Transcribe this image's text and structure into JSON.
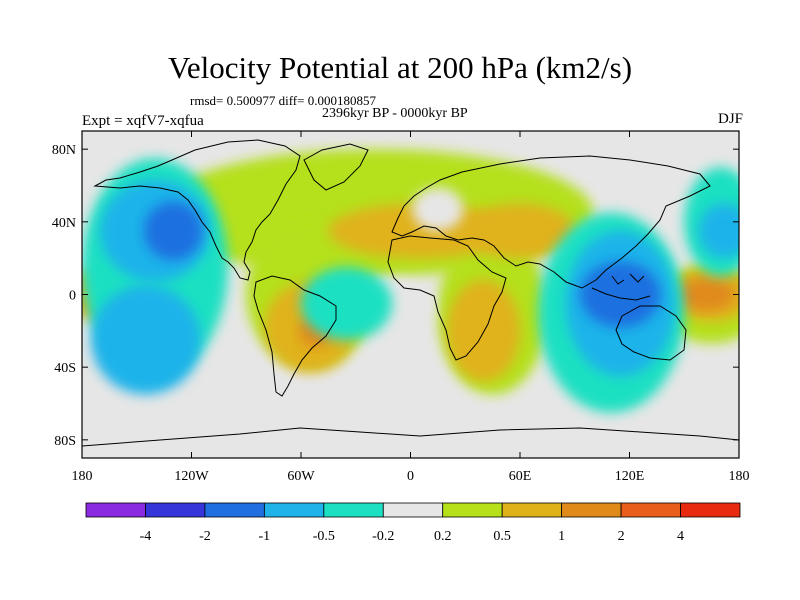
{
  "title": "Velocity Potential at 200 hPa (km2/s)",
  "stats_text": "rmsd= 0.500977 diff= 0.000180857",
  "period_text": "2396kyr BP - 0000kyr BP",
  "experiment_text": "Expt = xqfV7-xqfua",
  "season": "DJF",
  "map": {
    "projection": "cylindrical equidistant",
    "lon_range": [
      -180,
      180
    ],
    "lat_range": [
      -90,
      90
    ],
    "lon_ticks": [
      {
        "value": -180,
        "label": "180"
      },
      {
        "value": -120,
        "label": "120W"
      },
      {
        "value": -60,
        "label": "60W"
      },
      {
        "value": 0,
        "label": "0"
      },
      {
        "value": 60,
        "label": "60E"
      },
      {
        "value": 120,
        "label": "120E"
      },
      {
        "value": 180,
        "label": "180"
      }
    ],
    "lat_ticks": [
      {
        "value": 80,
        "label": "80N"
      },
      {
        "value": 40,
        "label": "40N"
      },
      {
        "value": 0,
        "label": "0"
      },
      {
        "value": -40,
        "label": "40S"
      },
      {
        "value": -80,
        "label": "80S"
      }
    ]
  },
  "colorbar": {
    "colors": [
      "#8a2be2",
      "#3535d9",
      "#1f6fe0",
      "#1fb3ea",
      "#1de0c2",
      "#e6e6e6",
      "#b5e01a",
      "#e0b21a",
      "#e08a1a",
      "#e85e1a",
      "#e82a10"
    ],
    "labels": [
      "-4",
      "-2",
      "-1",
      "-0.5",
      "-0.2",
      "0.2",
      "0.5",
      "1",
      "2",
      "4"
    ]
  },
  "fields": [
    {
      "level": "0.5",
      "color": "#b5e01a",
      "lon": -20,
      "lat": 45,
      "rlon": 120,
      "rlat": 35
    },
    {
      "level": "0.5",
      "color": "#b5e01a",
      "lon": -55,
      "lat": 0,
      "rlon": 35,
      "rlat": 40
    },
    {
      "level": "0.5",
      "color": "#b5e01a",
      "lon": 45,
      "lat": -10,
      "rlon": 30,
      "rlat": 45
    },
    {
      "level": "0.5",
      "color": "#b5e01a",
      "lon": 165,
      "lat": -5,
      "rlon": 28,
      "rlat": 22
    },
    {
      "level": "1",
      "color": "#e0b21a",
      "lon": 5,
      "lat": 35,
      "rlon": 50,
      "rlat": 15
    },
    {
      "level": "1",
      "color": "#e0b21a",
      "lon": 60,
      "lat": 35,
      "rlon": 30,
      "rlat": 15
    },
    {
      "level": "1",
      "color": "#e0b21a",
      "lon": -55,
      "lat": -18,
      "rlon": 25,
      "rlat": 25
    },
    {
      "level": "1",
      "color": "#e0b21a",
      "lon": 40,
      "lat": -20,
      "rlon": 20,
      "rlat": 28
    },
    {
      "level": "1",
      "color": "#e0b21a",
      "lon": 165,
      "lat": 0,
      "rlon": 22,
      "rlat": 15
    },
    {
      "level": "1",
      "color": "#e0b21a",
      "lon": -172,
      "lat": 0,
      "rlon": 18,
      "rlat": 14
    },
    {
      "level": "2",
      "color": "#e08a1a",
      "lon": -52,
      "lat": -20,
      "rlon": 9,
      "rlat": 9
    },
    {
      "level": "2",
      "color": "#e08a1a",
      "lon": 162,
      "lat": 0,
      "rlon": 16,
      "rlat": 9
    },
    {
      "level": "-0.2",
      "color": "#e6e6e6",
      "lon": 15,
      "lat": 47,
      "rlon": 14,
      "rlat": 12
    },
    {
      "level": "-0.2",
      "color": "#e6e6e6",
      "lon": -10,
      "lat": -5,
      "rlon": 22,
      "rlat": 13
    },
    {
      "level": "-0.5",
      "color": "#1de0c2",
      "lon": -140,
      "lat": 15,
      "rlon": 40,
      "rlat": 60
    },
    {
      "level": "-0.5",
      "color": "#1de0c2",
      "lon": -35,
      "lat": -5,
      "rlon": 25,
      "rlat": 20
    },
    {
      "level": "-0.5",
      "color": "#1de0c2",
      "lon": 110,
      "lat": -10,
      "rlon": 40,
      "rlat": 55
    },
    {
      "level": "-0.5",
      "color": "#1de0c2",
      "lon": 170,
      "lat": 40,
      "rlon": 20,
      "rlat": 30
    },
    {
      "level": "-1",
      "color": "#1fb3ea",
      "lon": -140,
      "lat": 35,
      "rlon": 30,
      "rlat": 28
    },
    {
      "level": "-1",
      "color": "#1fb3ea",
      "lon": -145,
      "lat": -25,
      "rlon": 30,
      "rlat": 30
    },
    {
      "level": "-1",
      "color": "#1fb3ea",
      "lon": 115,
      "lat": -5,
      "rlon": 30,
      "rlat": 40
    },
    {
      "level": "-1",
      "color": "#1fb3ea",
      "lon": 172,
      "lat": 35,
      "rlon": 14,
      "rlat": 15
    },
    {
      "level": "-2",
      "color": "#1f6fe0",
      "lon": -130,
      "lat": 35,
      "rlon": 16,
      "rlat": 16
    },
    {
      "level": "-2",
      "color": "#1f6fe0",
      "lon": 115,
      "lat": 0,
      "rlon": 22,
      "rlat": 18
    }
  ]
}
